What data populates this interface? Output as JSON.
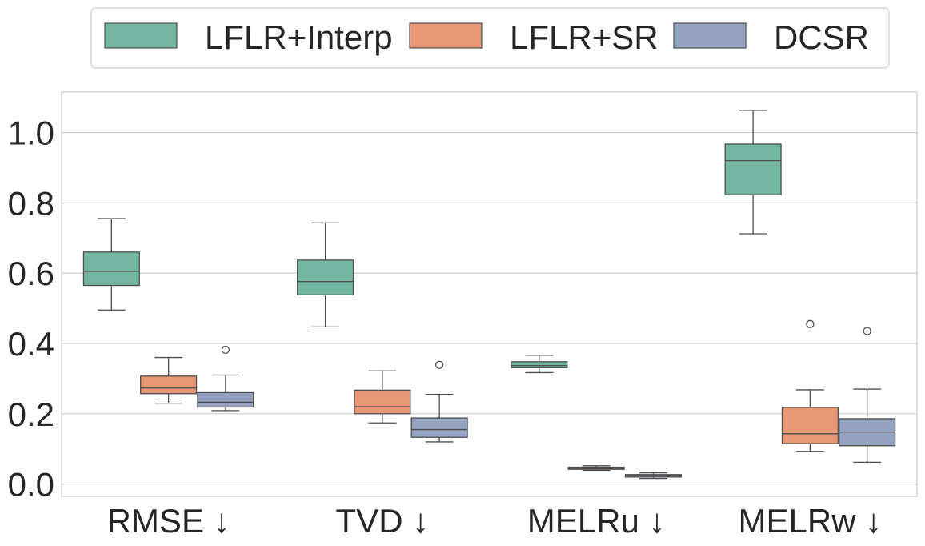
{
  "chart_data": {
    "type": "box",
    "categories": [
      "RMSE ↓",
      "TVD ↓",
      "MELRu ↓",
      "MELRw ↓"
    ],
    "ylim": [
      -0.035,
      1.115
    ],
    "yticks": [
      "0.0",
      "0.2",
      "0.4",
      "0.6",
      "0.8",
      "1.0"
    ],
    "ytick_values": [
      0.0,
      0.2,
      0.4,
      0.6,
      0.8,
      1.0
    ],
    "grid": true,
    "legend_position": "top-center",
    "series": [
      {
        "name": "LFLR+Interp",
        "color": "#72b6a1",
        "boxes": [
          {
            "whislo": 0.495,
            "q1": 0.565,
            "med": 0.605,
            "q3": 0.66,
            "whishi": 0.755,
            "fliers": []
          },
          {
            "whislo": 0.447,
            "q1": 0.538,
            "med": 0.576,
            "q3": 0.637,
            "whishi": 0.743,
            "fliers": []
          },
          {
            "whislo": 0.317,
            "q1": 0.331,
            "med": 0.337,
            "q3": 0.348,
            "whishi": 0.366,
            "fliers": []
          },
          {
            "whislo": 0.712,
            "q1": 0.823,
            "med": 0.92,
            "q3": 0.967,
            "whishi": 1.063,
            "fliers": []
          }
        ]
      },
      {
        "name": "LFLR+SR",
        "color": "#e99675",
        "boxes": [
          {
            "whislo": 0.23,
            "q1": 0.257,
            "med": 0.273,
            "q3": 0.307,
            "whishi": 0.36,
            "fliers": []
          },
          {
            "whislo": 0.174,
            "q1": 0.2,
            "med": 0.22,
            "q3": 0.267,
            "whishi": 0.322,
            "fliers": []
          },
          {
            "whislo": 0.039,
            "q1": 0.042,
            "med": 0.045,
            "q3": 0.048,
            "whishi": 0.052,
            "fliers": []
          },
          {
            "whislo": 0.093,
            "q1": 0.115,
            "med": 0.143,
            "q3": 0.218,
            "whishi": 0.268,
            "fliers": [
              0.455
            ]
          }
        ]
      },
      {
        "name": "DCSR",
        "color": "#95a3c3",
        "boxes": [
          {
            "whislo": 0.209,
            "q1": 0.219,
            "med": 0.233,
            "q3": 0.26,
            "whishi": 0.31,
            "fliers": [
              0.382
            ]
          },
          {
            "whislo": 0.12,
            "q1": 0.133,
            "med": 0.155,
            "q3": 0.188,
            "whishi": 0.255,
            "fliers": [
              0.339
            ]
          },
          {
            "whislo": 0.016,
            "q1": 0.02,
            "med": 0.024,
            "q3": 0.027,
            "whishi": 0.032,
            "fliers": []
          },
          {
            "whislo": 0.062,
            "q1": 0.109,
            "med": 0.148,
            "q3": 0.186,
            "whishi": 0.27,
            "fliers": [
              0.435
            ]
          }
        ]
      }
    ]
  }
}
